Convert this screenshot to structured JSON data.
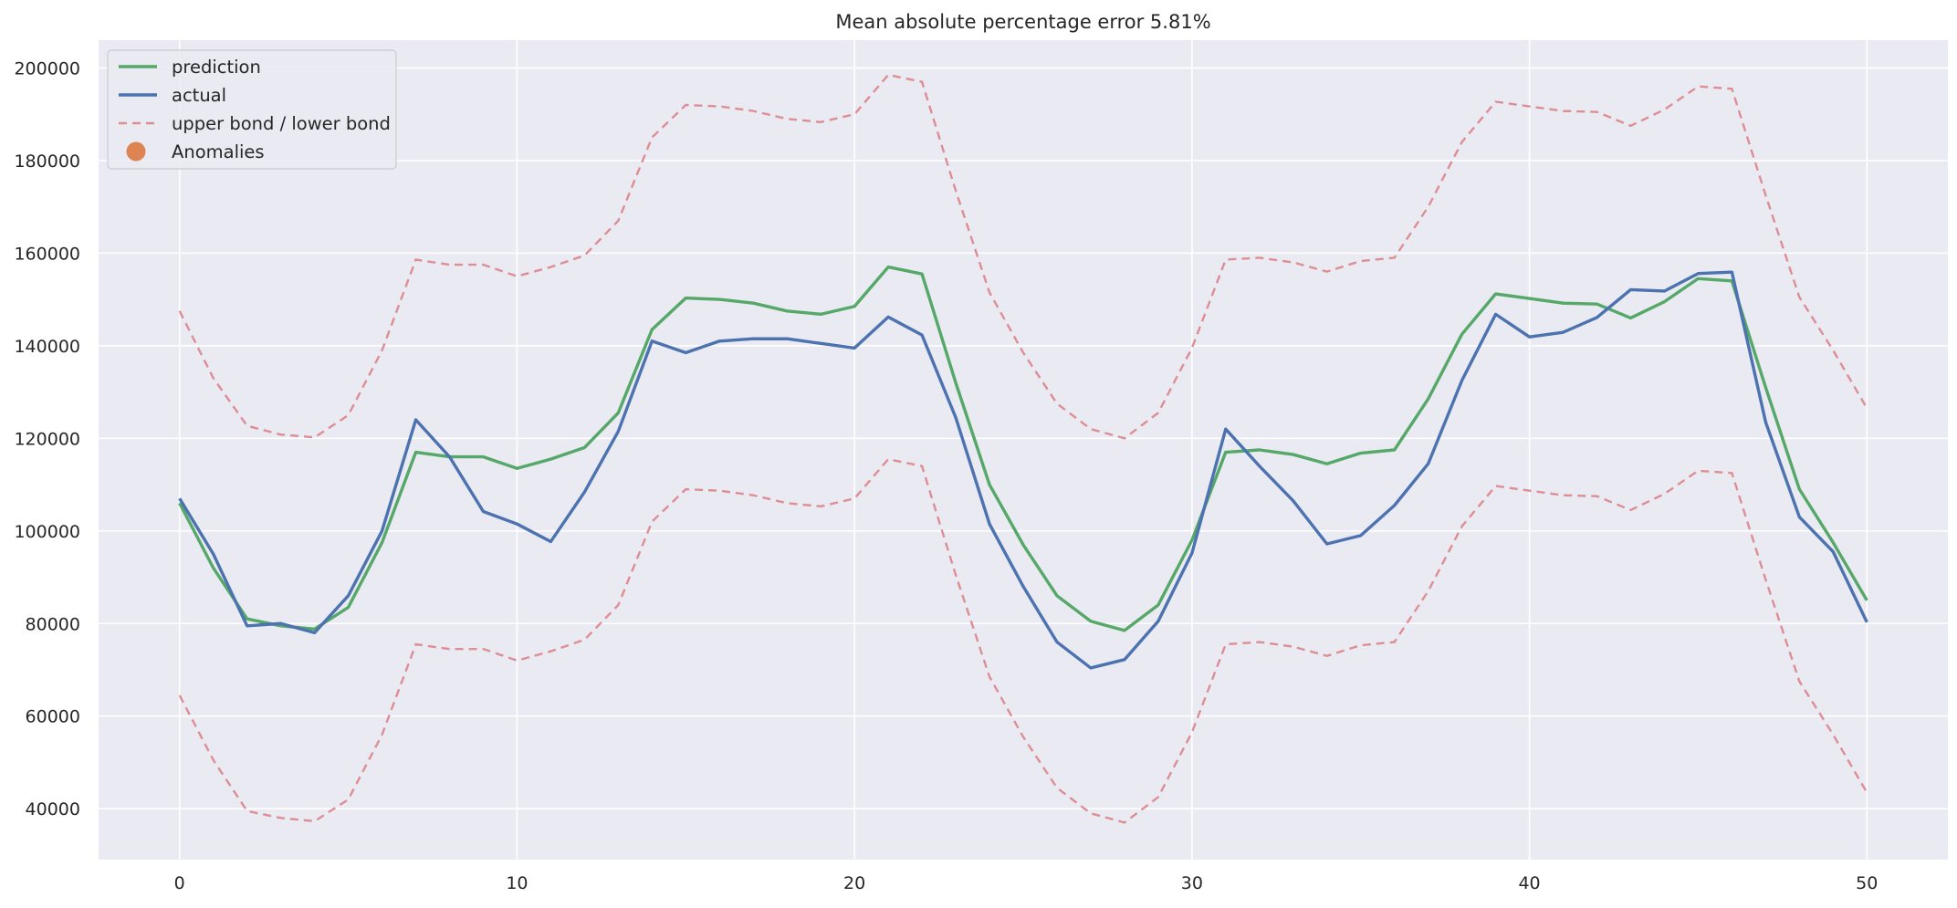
{
  "chart_data": {
    "type": "line",
    "title": "Mean absolute percentage error 5.81%",
    "xlabel": "",
    "ylabel": "",
    "xlim": [
      -2.4,
      52.4
    ],
    "ylim": [
      29000,
      206000
    ],
    "xticks": [
      0,
      10,
      20,
      30,
      40,
      50
    ],
    "xtick_labels": [
      "0",
      "10",
      "20",
      "30",
      "40",
      "50"
    ],
    "yticks": [
      40000,
      60000,
      80000,
      100000,
      120000,
      140000,
      160000,
      180000,
      200000
    ],
    "ytick_labels": [
      "40000",
      "60000",
      "80000",
      "100000",
      "120000",
      "140000",
      "160000",
      "180000",
      "200000"
    ],
    "grid": true,
    "legend_position": "top-left",
    "x": [
      0,
      1,
      2,
      3,
      4,
      5,
      6,
      7,
      8,
      9,
      10,
      11,
      12,
      13,
      14,
      15,
      16,
      17,
      18,
      19,
      20,
      21,
      22,
      23,
      24,
      25,
      26,
      27,
      28,
      29,
      30,
      31,
      32,
      33,
      34,
      35,
      36,
      37,
      38,
      39,
      40,
      41,
      42,
      43,
      44,
      45,
      46,
      47,
      48,
      49,
      50
    ],
    "series": [
      {
        "name": "prediction",
        "color": "#55a868",
        "style": "solid",
        "values": [
          106000,
          92000,
          81000,
          79500,
          78800,
          83500,
          97500,
          117000,
          116000,
          116000,
          113500,
          115500,
          118000,
          125500,
          143500,
          150300,
          150000,
          149200,
          147500,
          146800,
          148500,
          157000,
          155500,
          132000,
          110000,
          97000,
          86000,
          80500,
          78500,
          84000,
          98000,
          117000,
          117500,
          116500,
          114500,
          116800,
          117500,
          128500,
          142500,
          151200,
          150200,
          149200,
          149000,
          146000,
          149500,
          154500,
          154000,
          131000,
          109000,
          97500,
          85000
        ]
      },
      {
        "name": "actual",
        "color": "#4c72b0",
        "style": "solid",
        "values": [
          107000,
          95000,
          79500,
          80000,
          78000,
          86000,
          100000,
          124000,
          116000,
          104200,
          101500,
          97700,
          108400,
          121500,
          141000,
          138500,
          141000,
          141500,
          141500,
          140500,
          139500,
          146200,
          142300,
          124500,
          101500,
          88000,
          76000,
          70400,
          72200,
          80500,
          95200,
          122000,
          114000,
          106500,
          97200,
          99000,
          105500,
          114500,
          132500,
          146800,
          141900,
          142900,
          146100,
          152100,
          151800,
          155600,
          155900,
          123500,
          103000,
          95500,
          80300
        ]
      },
      {
        "name": "upper bond / lower bond",
        "color": "#dd8e94",
        "style": "dashed",
        "upper": [
          147500,
          133000,
          122700,
          120800,
          120200,
          125000,
          139000,
          158600,
          157500,
          157500,
          155000,
          157000,
          159500,
          167000,
          185000,
          192000,
          191700,
          190700,
          189000,
          188300,
          190000,
          198500,
          197000,
          173500,
          151500,
          138500,
          127500,
          122000,
          120000,
          125500,
          139500,
          158600,
          159000,
          158000,
          156000,
          158300,
          159000,
          170000,
          184000,
          192700,
          191700,
          190700,
          190500,
          187500,
          191000,
          196000,
          195500,
          172500,
          150500,
          139000,
          126500
        ],
        "lower": [
          64500,
          50500,
          39500,
          38000,
          37300,
          42000,
          56000,
          75500,
          74500,
          74500,
          72000,
          74000,
          76500,
          84000,
          102000,
          109000,
          108700,
          107700,
          106000,
          105300,
          107000,
          115500,
          114000,
          90500,
          68500,
          55500,
          44500,
          39000,
          37000,
          42500,
          56500,
          75500,
          76000,
          75000,
          73000,
          75300,
          76000,
          87000,
          101000,
          109700,
          108700,
          107700,
          107500,
          104500,
          108000,
          113000,
          112500,
          89500,
          67500,
          56000,
          43500
        ]
      }
    ],
    "legend": [
      {
        "label": "prediction",
        "kind": "line",
        "color": "#55a868"
      },
      {
        "label": "actual",
        "kind": "line",
        "color": "#4c72b0"
      },
      {
        "label": "upper bond / lower bond",
        "kind": "dashed",
        "color": "#dd8e94"
      },
      {
        "label": "Anomalies",
        "kind": "marker",
        "color": "#dd8452"
      }
    ],
    "colors": {
      "plot_background": "#eaeaf2",
      "grid": "#ffffff",
      "legend_background": "#eaeaf2",
      "legend_border": "#cccccc"
    }
  }
}
